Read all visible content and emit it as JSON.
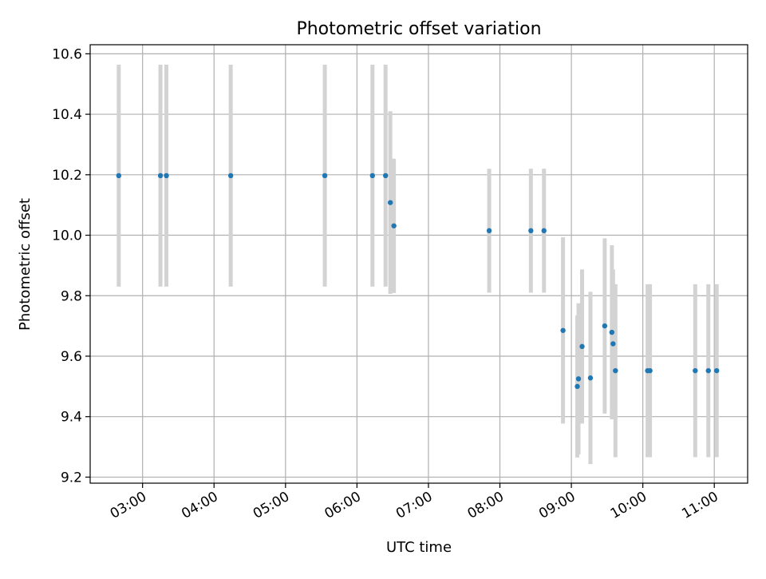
{
  "chart_data": {
    "type": "scatter",
    "title": "Photometric offset variation",
    "xlabel": "UTC time",
    "ylabel": "Photometric offset",
    "x_ticks": [
      "03:00",
      "04:00",
      "05:00",
      "06:00",
      "07:00",
      "08:00",
      "09:00",
      "10:00",
      "11:00"
    ],
    "y_ticks": [
      "9.2",
      "9.4",
      "9.6",
      "9.8",
      "10.0",
      "10.2",
      "10.4",
      "10.6"
    ],
    "xlim": [
      "02:16",
      "11:28"
    ],
    "ylim": [
      9.18,
      10.63
    ],
    "grid": true,
    "marker_color": "#1f77b4",
    "errorbar_color": "#d3d3d3",
    "points": [
      {
        "x": "02:40",
        "y": 10.197,
        "err": 0.367
      },
      {
        "x": "03:15",
        "y": 10.197,
        "err": 0.367
      },
      {
        "x": "03:20",
        "y": 10.197,
        "err": 0.367
      },
      {
        "x": "04:14",
        "y": 10.197,
        "err": 0.367
      },
      {
        "x": "05:33",
        "y": 10.197,
        "err": 0.367
      },
      {
        "x": "06:13",
        "y": 10.197,
        "err": 0.367
      },
      {
        "x": "06:24",
        "y": 10.197,
        "err": 0.367
      },
      {
        "x": "06:28",
        "y": 10.108,
        "err": 0.302
      },
      {
        "x": "06:31",
        "y": 10.031,
        "err": 0.222
      },
      {
        "x": "07:51",
        "y": 10.015,
        "err": 0.205
      },
      {
        "x": "08:26",
        "y": 10.015,
        "err": 0.205
      },
      {
        "x": "08:37",
        "y": 10.015,
        "err": 0.205
      },
      {
        "x": "08:53",
        "y": 9.685,
        "err": 0.308
      },
      {
        "x": "09:05",
        "y": 9.5,
        "err": 0.235
      },
      {
        "x": "09:06",
        "y": 9.525,
        "err": 0.25
      },
      {
        "x": "09:09",
        "y": 9.632,
        "err": 0.255
      },
      {
        "x": "09:16",
        "y": 9.528,
        "err": 0.285
      },
      {
        "x": "09:28",
        "y": 9.7,
        "err": 0.29
      },
      {
        "x": "09:34",
        "y": 9.679,
        "err": 0.288
      },
      {
        "x": "09:35",
        "y": 9.641,
        "err": 0.246
      },
      {
        "x": "09:37",
        "y": 9.552,
        "err": 0.286
      },
      {
        "x": "10:04",
        "y": 9.552,
        "err": 0.286
      },
      {
        "x": "10:06",
        "y": 9.552,
        "err": 0.286
      },
      {
        "x": "10:44",
        "y": 9.552,
        "err": 0.286
      },
      {
        "x": "10:55",
        "y": 9.552,
        "err": 0.286
      },
      {
        "x": "11:02",
        "y": 9.552,
        "err": 0.286
      }
    ]
  }
}
